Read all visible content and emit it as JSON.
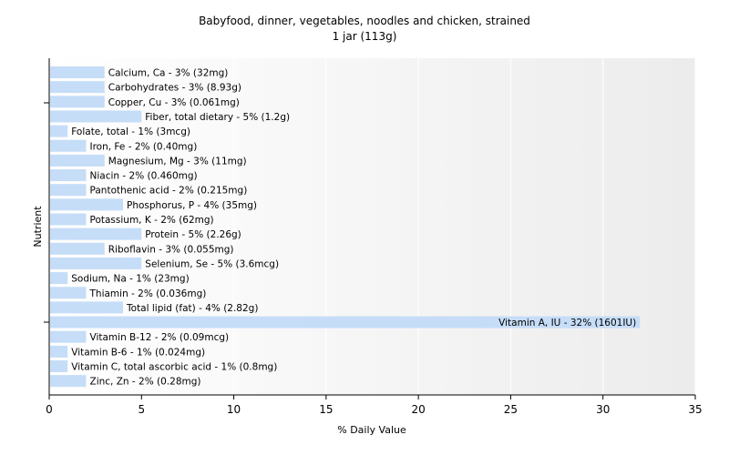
{
  "chart_data": {
    "type": "bar",
    "orientation": "horizontal",
    "title": "Babyfood, dinner, vegetables, noodles and chicken, strained",
    "subtitle": "1 jar (113g)",
    "xlabel": "% Daily Value",
    "ylabel": "Nutrient",
    "xlim": [
      0,
      35
    ],
    "xticks": [
      0,
      5,
      10,
      15,
      20,
      25,
      30,
      35
    ],
    "bar_color": "#c6ddf8",
    "grid": true,
    "categories": [
      "Calcium, Ca",
      "Carbohydrates",
      "Copper, Cu",
      "Fiber, total dietary",
      "Folate, total",
      "Iron, Fe",
      "Magnesium, Mg",
      "Niacin",
      "Pantothenic acid",
      "Phosphorus, P",
      "Potassium, K",
      "Protein",
      "Riboflavin",
      "Selenium, Se",
      "Sodium, Na",
      "Thiamin",
      "Total lipid (fat)",
      "Vitamin A, IU",
      "Vitamin B-12",
      "Vitamin B-6",
      "Vitamin C, total ascorbic acid",
      "Zinc, Zn"
    ],
    "values": [
      3,
      3,
      3,
      5,
      1,
      2,
      3,
      2,
      2,
      4,
      2,
      5,
      3,
      5,
      1,
      2,
      4,
      32,
      2,
      1,
      1,
      2
    ],
    "labels": [
      "Calcium, Ca - 3% (32mg)",
      "Carbohydrates - 3% (8.93g)",
      "Copper, Cu - 3% (0.061mg)",
      "Fiber, total dietary - 5% (1.2g)",
      "Folate, total - 1% (3mcg)",
      "Iron, Fe - 2% (0.40mg)",
      "Magnesium, Mg - 3% (11mg)",
      "Niacin - 2% (0.460mg)",
      "Pantothenic acid - 2% (0.215mg)",
      "Phosphorus, P - 4% (35mg)",
      "Potassium, K - 2% (62mg)",
      "Protein - 5% (2.26g)",
      "Riboflavin - 3% (0.055mg)",
      "Selenium, Se - 5% (3.6mcg)",
      "Sodium, Na - 1% (23mg)",
      "Thiamin - 2% (0.036mg)",
      "Total lipid (fat) - 4% (2.82g)",
      "Vitamin A, IU - 32% (1601IU)",
      "Vitamin B-12 - 2% (0.09mcg)",
      "Vitamin B-6 - 1% (0.024mg)",
      "Vitamin C, total ascorbic acid - 1% (0.8mg)",
      "Zinc, Zn - 2% (0.28mg)"
    ]
  }
}
